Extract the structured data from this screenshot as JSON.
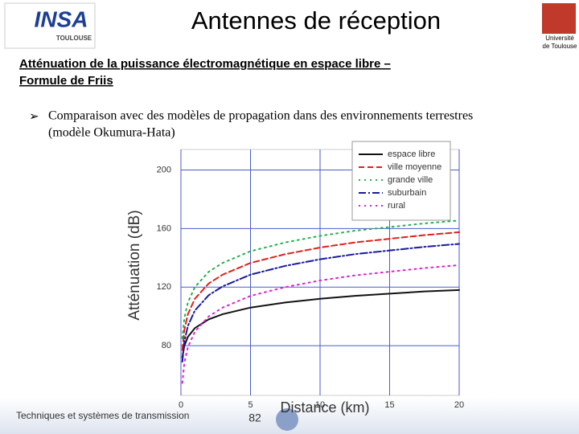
{
  "header": {
    "title": "Antennes de réception",
    "logo_left": "INSA",
    "logo_left_sub": "TOULOUSE",
    "logo_right": [
      "Université",
      "de Toulouse"
    ]
  },
  "subtitle": [
    "Atténuation de la puissance électromagnétique en espace libre –",
    "Formule de Friis"
  ],
  "bullet": [
    "Comparaison avec des modèles de propagation dans des environnements terrestres",
    "(modèle Okumura-Hata)"
  ],
  "footer": {
    "text": "Techniques et systèmes de transmission",
    "page": "82"
  },
  "chart_data": {
    "type": "line",
    "x_label": "Distance (km)",
    "y_label": "Atténuation (dB)",
    "x": [
      0.1,
      0.25,
      0.5,
      1,
      2,
      3,
      5,
      7.5,
      10,
      12.5,
      15,
      17.5,
      20
    ],
    "series": [
      {
        "name": "espace libre",
        "color": "#111111",
        "dash": "solid",
        "values": [
          72,
          80,
          86,
          92,
          98,
          101.5,
          106,
          109.5,
          112,
          114,
          115.5,
          117,
          118
        ]
      },
      {
        "name": "ville moyenne",
        "color": "#e0201a",
        "dash": "dashed",
        "values": [
          77,
          91,
          101.5,
          112,
          122.5,
          128.5,
          136.5,
          142.5,
          147,
          150.5,
          153,
          155.5,
          157.5
        ]
      },
      {
        "name": "grande ville",
        "color": "#22b14c",
        "dash": "dotted",
        "values": [
          85,
          99,
          109.5,
          120,
          130.5,
          136.5,
          144.5,
          150.5,
          155,
          158.5,
          161,
          163.5,
          165.5
        ]
      },
      {
        "name": "suburbain",
        "color": "#1a1aa0",
        "dash": "dashdot",
        "values": [
          69,
          83,
          93.5,
          104,
          114.5,
          120.5,
          128.5,
          134.5,
          139,
          142.5,
          145,
          147.5,
          149.5
        ]
      },
      {
        "name": "rural",
        "color": "#e020d0",
        "dash": "dotted",
        "values": [
          54.5,
          68.5,
          79,
          89.5,
          100,
          106,
          114,
          120,
          124.5,
          128,
          130.5,
          133,
          135
        ]
      }
    ],
    "xlim": [
      0,
      20
    ],
    "xticks": [
      0,
      5,
      10,
      15,
      20
    ],
    "ylim": [
      46,
      214
    ],
    "yticks": [
      80,
      120,
      160,
      200
    ],
    "grid": true
  }
}
